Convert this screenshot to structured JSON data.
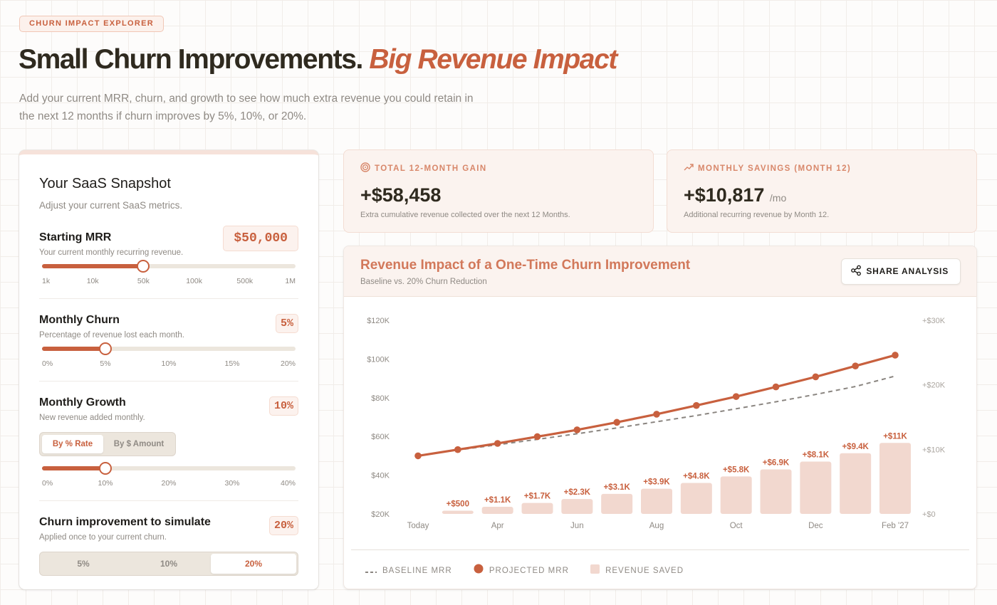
{
  "header": {
    "badge": "CHURN IMPACT EXPLORER",
    "title_main": "Small Churn Improvements.",
    "title_accent": "Big Revenue Impact",
    "subtitle": "Add your current MRR, churn, and growth to see how much extra revenue you could retain in the next 12 months if churn improves by 5%, 10%, or 20%."
  },
  "snapshot": {
    "title": "Your SaaS Snapshot",
    "subtitle": "Adjust your current SaaS metrics.",
    "mrr": {
      "label": "Starting MRR",
      "desc": "Your current monthly recurring revenue.",
      "value": "$50,000",
      "slider_fraction": 0.4,
      "ticks": [
        "1k",
        "10k",
        "50k",
        "100k",
        "500k",
        "1M"
      ]
    },
    "churn": {
      "label": "Monthly Churn",
      "desc": "Percentage of revenue lost each month.",
      "value": "5%",
      "slider_fraction": 0.25,
      "ticks": [
        "0%",
        "5%",
        "10%",
        "15%",
        "20%"
      ]
    },
    "growth": {
      "label": "Monthly Growth",
      "desc": "New revenue added monthly.",
      "value": "10%",
      "toggle": [
        "By % Rate",
        "By $ Amount"
      ],
      "toggle_active": 0,
      "slider_fraction": 0.25,
      "ticks": [
        "0%",
        "10%",
        "20%",
        "30%",
        "40%"
      ]
    },
    "improvement": {
      "label": "Churn improvement to simulate",
      "desc": "Applied once to your current churn.",
      "value": "20%",
      "options": [
        "5%",
        "10%",
        "20%"
      ],
      "active": 2
    }
  },
  "stats": {
    "total": {
      "label": "TOTAL 12-MONTH GAIN",
      "icon": "target-icon",
      "value": "+$58,458",
      "desc": "Extra cumulative revenue collected over the next 12 Months."
    },
    "monthly": {
      "label": "MONTHLY SAVINGS (MONTH 12)",
      "icon": "trending-up-icon",
      "value": "+$10,817",
      "unit": "/mo",
      "desc": "Additional recurring revenue by Month 12."
    }
  },
  "chart": {
    "title": "Revenue Impact of a One-Time Churn Improvement",
    "subtitle": "Baseline vs. 20% Churn Reduction",
    "share_label": "SHARE ANALYSIS",
    "legend": {
      "baseline": "BASELINE MRR",
      "projected": "PROJECTED MRR",
      "saved": "REVENUE SAVED"
    }
  },
  "colors": {
    "accent": "#c8603e",
    "bar": "#f2d8cf",
    "baseline": "#8a8580"
  },
  "chart_data": {
    "type": "line",
    "x_tick_labels": [
      "Today",
      "Apr",
      "Jun",
      "Aug",
      "Oct",
      "Dec",
      "Feb '27"
    ],
    "x_tick_indices": [
      0,
      2,
      4,
      6,
      8,
      10,
      12
    ],
    "left_axis": {
      "ticks": [
        "$20K",
        "$40K",
        "$60K",
        "$80K",
        "$100K",
        "$120K"
      ],
      "min": 20000,
      "max": 120000
    },
    "right_axis": {
      "ticks": [
        "+$0",
        "+$10K",
        "+$20K",
        "+$30K"
      ],
      "min": 0,
      "max": 30000
    },
    "series": [
      {
        "name": "PROJECTED MRR",
        "axis": "left",
        "values": [
          50000,
          53200,
          56400,
          59900,
          63400,
          67300,
          71500,
          76000,
          80600,
          85600,
          90800,
          96400,
          102000
        ]
      },
      {
        "name": "BASELINE MRR",
        "axis": "left",
        "values": [
          50000,
          53000,
          55700,
          58500,
          61400,
          64400,
          67600,
          70800,
          74300,
          77900,
          81700,
          85800,
          91200
        ]
      },
      {
        "name": "REVENUE SAVED",
        "axis": "right",
        "type": "bar",
        "values": [
          null,
          500,
          1100,
          1700,
          2300,
          3100,
          3900,
          4800,
          5800,
          6900,
          8100,
          9400,
          11000
        ],
        "labels": [
          "",
          "+$500",
          "+$1.1K",
          "+$1.7K",
          "+$2.3K",
          "+$3.1K",
          "+$3.9K",
          "+$4.8K",
          "+$5.8K",
          "+$6.9K",
          "+$8.1K",
          "+$9.4K",
          "+$11K"
        ]
      }
    ],
    "grid": false,
    "legend_position": "bottom"
  }
}
